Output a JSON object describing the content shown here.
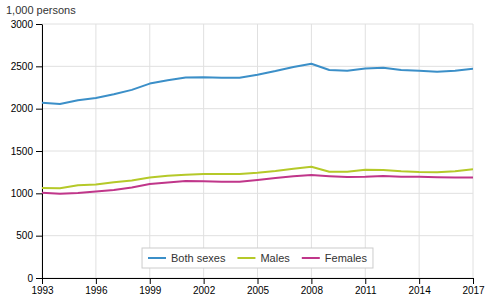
{
  "chart_data": {
    "type": "line",
    "y_label": "1,000 persons",
    "x": [
      1993,
      1994,
      1995,
      1996,
      1997,
      1998,
      1999,
      2000,
      2001,
      2002,
      2003,
      2004,
      2005,
      2006,
      2007,
      2008,
      2009,
      2010,
      2011,
      2012,
      2013,
      2014,
      2015,
      2016,
      2017
    ],
    "series": [
      {
        "name": "Both sexes",
        "color": "#3b8fc8",
        "values": [
          2071,
          2054,
          2099,
          2127,
          2170,
          2222,
          2296,
          2335,
          2367,
          2372,
          2365,
          2365,
          2401,
          2444,
          2492,
          2531,
          2457,
          2447,
          2474,
          2483,
          2457,
          2447,
          2437,
          2448,
          2473
        ]
      },
      {
        "name": "Males",
        "color": "#b5c929",
        "values": [
          1063,
          1059,
          1096,
          1104,
          1130,
          1152,
          1186,
          1207,
          1220,
          1229,
          1227,
          1229,
          1243,
          1263,
          1290,
          1315,
          1255,
          1255,
          1278,
          1277,
          1261,
          1252,
          1248,
          1262,
          1285
        ]
      },
      {
        "name": "Females",
        "color": "#c0368a",
        "values": [
          1008,
          995,
          1003,
          1023,
          1040,
          1070,
          1110,
          1128,
          1147,
          1143,
          1138,
          1136,
          1158,
          1181,
          1202,
          1216,
          1202,
          1192,
          1196,
          1206,
          1196,
          1195,
          1189,
          1186,
          1188
        ]
      }
    ],
    "xlim": [
      1993,
      2017
    ],
    "xticks": [
      1993,
      1996,
      1999,
      2002,
      2005,
      2008,
      2011,
      2014,
      2017
    ],
    "ylim": [
      0,
      3000
    ],
    "yticks": [
      0,
      500,
      1000,
      1500,
      2000,
      2500,
      3000
    ],
    "grid": true,
    "legend": "lower center"
  }
}
